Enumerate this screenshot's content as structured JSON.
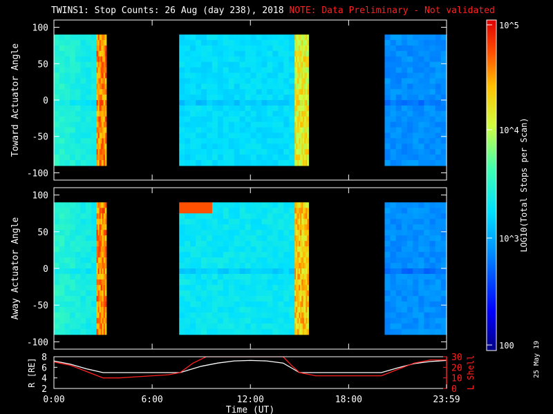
{
  "title": {
    "main": "TWINS1: Stop Counts: 26 Aug (day 238), 2018",
    "note": "NOTE: Data Preliminary - Not validated",
    "note_color": "#ff2020"
  },
  "print_date": "25 May 19",
  "chart_data": [
    {
      "type": "heatmap",
      "panel": "toward",
      "ylabel": "Toward Actuator Angle",
      "ylim": [
        -110,
        110
      ],
      "y_ticks": [
        -100,
        -50,
        0,
        50,
        100
      ],
      "x_ticks": [
        "0:00",
        "6:00",
        "12:00",
        "18:00",
        "23:59"
      ],
      "xlim_hours": [
        0,
        23.98
      ],
      "data_range_deg": [
        -90,
        90
      ],
      "segments": [
        {
          "start_h": 0.0,
          "end_h": 2.6,
          "level": 0.45,
          "note": "gradient brighter near start"
        },
        {
          "start_h": 2.6,
          "end_h": 3.2,
          "level": 0.85,
          "note": "red/orange striped band"
        },
        {
          "start_h": 7.65,
          "end_h": 14.7,
          "level": 0.42
        },
        {
          "start_h": 14.7,
          "end_h": 15.55,
          "level": 0.72,
          "note": "yellow band"
        },
        {
          "start_h": 20.2,
          "end_h": 23.98,
          "level": 0.3
        }
      ]
    },
    {
      "type": "heatmap",
      "panel": "away",
      "ylabel": "Away Actuator Angle",
      "ylim": [
        -110,
        110
      ],
      "y_ticks": [
        -100,
        -50,
        0,
        50,
        100
      ],
      "x_ticks": [
        "0:00",
        "6:00",
        "12:00",
        "18:00",
        "23:59"
      ],
      "xlim_hours": [
        0,
        23.98
      ],
      "data_range_deg": [
        -90,
        90
      ],
      "segments": [
        {
          "start_h": 0.0,
          "end_h": 2.6,
          "level": 0.45
        },
        {
          "start_h": 2.6,
          "end_h": 3.2,
          "level": 0.85,
          "note": "red/orange striped band"
        },
        {
          "start_h": 7.65,
          "end_h": 14.7,
          "level": 0.44,
          "note": "orange patch near +90 deg around 8-10h"
        },
        {
          "start_h": 14.7,
          "end_h": 15.55,
          "level": 0.78,
          "note": "orange band"
        },
        {
          "start_h": 20.2,
          "end_h": 23.98,
          "level": 0.3
        }
      ]
    },
    {
      "type": "line",
      "panel": "orbit",
      "ylabel_left": "R [RE]",
      "ylabel_right": "L Shell",
      "xlabel": "Time (UT)",
      "x_ticks": [
        "0:00",
        "6:00",
        "12:00",
        "18:00",
        "23:59"
      ],
      "ylim_left": [
        2,
        8
      ],
      "ylim_right": [
        0,
        30
      ],
      "y_ticks_left": [
        2,
        4,
        6,
        8
      ],
      "y_ticks_right": [
        0,
        10,
        20,
        30
      ],
      "series": [
        {
          "axis": "left",
          "color": "#ffffff",
          "x": [
            0,
            1,
            2,
            3,
            4,
            5,
            6,
            7,
            7.7,
            9,
            10,
            11,
            12,
            13,
            14,
            15,
            16,
            17,
            18,
            19,
            20,
            21,
            22,
            23,
            23.98
          ],
          "y": [
            7.2,
            6.6,
            5.7,
            5.0,
            5.0,
            5.0,
            5.0,
            5.0,
            5.0,
            6.2,
            6.8,
            7.2,
            7.3,
            7.2,
            6.8,
            5.0,
            5.0,
            5.0,
            5.0,
            5.0,
            5.0,
            5.9,
            6.7,
            7.1,
            7.3
          ]
        },
        {
          "axis": "right",
          "color": "#ff2020",
          "x": [
            0,
            1,
            2,
            3,
            4,
            5,
            6,
            7,
            7.7,
            8.5,
            9.3,
            14,
            14.5,
            15,
            16,
            17,
            18,
            19,
            20,
            21,
            22,
            23,
            23.98
          ],
          "y": [
            25,
            22,
            16,
            10,
            10,
            11,
            12,
            13,
            15,
            24,
            30,
            30,
            22,
            15,
            12,
            12,
            12,
            12,
            12,
            18,
            24,
            27,
            27
          ]
        }
      ]
    }
  ],
  "colorbar": {
    "label": "LOG10(Total Stops per Scan)",
    "ticks": [
      "10^5",
      "10^4",
      "10^3",
      "100"
    ]
  }
}
